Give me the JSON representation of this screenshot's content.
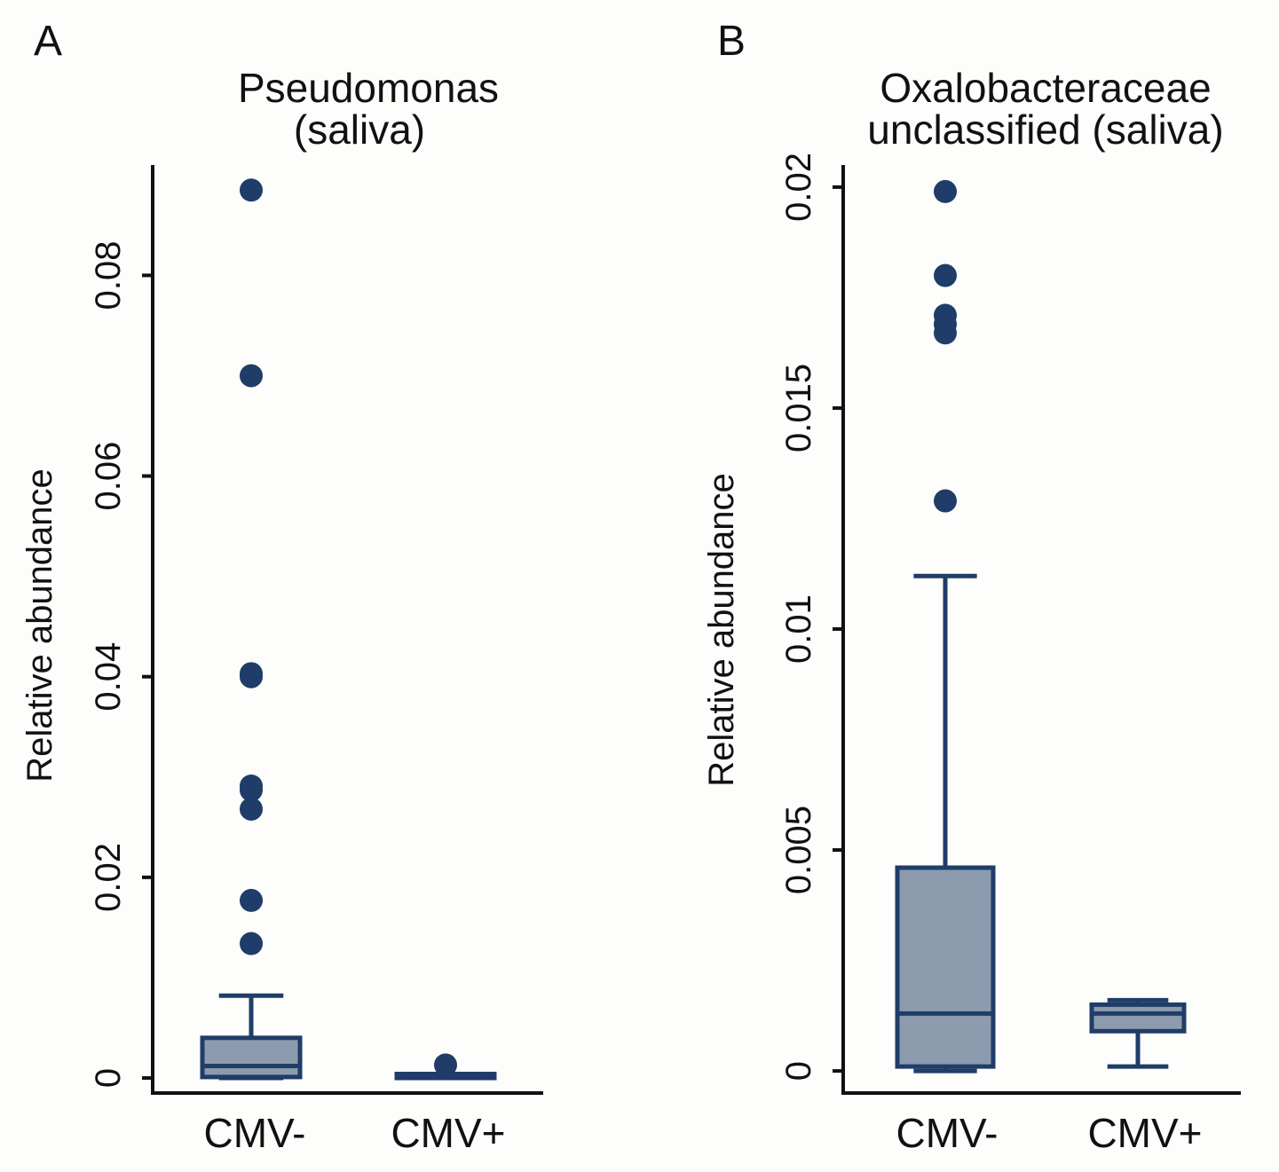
{
  "colors": {
    "box_fill": "#8c9cae",
    "stroke": "#1f3d68",
    "point": "#1f3d68",
    "axis": "#111111"
  },
  "chart_data": [
    {
      "type": "box",
      "panel": "A",
      "title_lines": [
        "Pseudomonas",
        "(saliva)"
      ],
      "ylabel": "Relative abundance",
      "ylim": [
        -0.0015,
        0.091
      ],
      "yticks": [
        "0",
        "0.02",
        "0.04",
        "0.06",
        "0.08"
      ],
      "categories": [
        "CMV-",
        "CMV+"
      ],
      "boxes": [
        {
          "name": "CMV-",
          "min": 0.0,
          "q1": 0.0001,
          "median": 0.0012,
          "q3": 0.004,
          "max": 0.0082,
          "outliers": [
            0.0885,
            0.07,
            0.0403,
            0.04,
            0.0291,
            0.0287,
            0.0268,
            0.0177,
            0.0134
          ]
        },
        {
          "name": "CMV+",
          "min": 0.0,
          "q1": 0.0,
          "median": 0.0002,
          "q3": 0.0004,
          "max": 0.0004,
          "outliers": [
            0.0013
          ]
        }
      ]
    },
    {
      "type": "box",
      "panel": "B",
      "title_lines": [
        "Oxalobacteraceae",
        "unclassified (saliva)"
      ],
      "ylabel": "Relative abundance",
      "ylim": [
        -0.0005,
        0.0205
      ],
      "yticks": [
        "0",
        "0.005",
        "0.01",
        "0.015",
        "0.02"
      ],
      "categories": [
        "CMV-",
        "CMV+"
      ],
      "boxes": [
        {
          "name": "CMV-",
          "min": 0.0,
          "q1": 0.0001,
          "median": 0.0013,
          "q3": 0.0046,
          "max": 0.0112,
          "outliers": [
            0.0199,
            0.018,
            0.0171,
            0.0169,
            0.0167,
            0.0129
          ]
        },
        {
          "name": "CMV+",
          "min": 0.0001,
          "q1": 0.0009,
          "median": 0.0013,
          "q3": 0.0015,
          "max": 0.0016,
          "outliers": []
        }
      ]
    }
  ]
}
